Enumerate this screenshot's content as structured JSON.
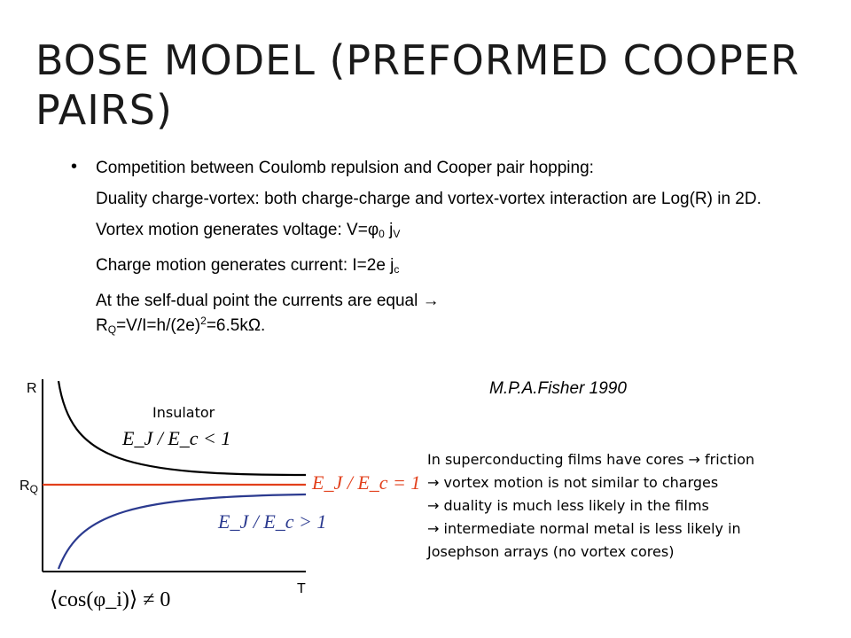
{
  "slide": {
    "title": "BOSE MODEL (PREFORMED COOPER PAIRS)",
    "bullets": {
      "main": "Competition between Coulomb repulsion and Cooper pair hopping:",
      "duality": "Duality charge-vortex: both charge-charge and vortex-vortex interaction are Log(R) in 2D.",
      "vortex_pre": "Vortex motion generates voltage: V=φ",
      "vortex_sub1": "0",
      "vortex_mid": " j",
      "vortex_sub2": "V",
      "charge_pre": "Charge motion generates current: I=2e j",
      "charge_sub": "c",
      "selfdual_line1": "At the self-dual point the currents are equal →",
      "selfdual_R": "R",
      "selfdual_Rsub": "Q",
      "selfdual_mid": "=V/I=h/(2e)",
      "selfdual_sup": "2",
      "selfdual_end": "=6.5kΩ."
    },
    "citation": "M.P.A.Fisher 1990",
    "diagram": {
      "y_axis_label": "R",
      "rq_label": "R",
      "rq_sub": "Q",
      "x_axis_label": "T",
      "insulator_label": "Insulator",
      "eq_upper": "E_J / E_c < 1",
      "eq_middle": "E_J / E_c = 1",
      "eq_lower": "E_J / E_c > 1",
      "eq_bottom": "⟨cos(φ_i)⟩ ≠ 0",
      "colors": {
        "upper": "#000000",
        "middle": "#e2401c",
        "lower": "#2b3a8f"
      }
    },
    "note": {
      "line1": "In superconducting films have cores → friction",
      "line2": "→ vortex motion is not similar to charges",
      "line3": "→ duality is much less likely in the films",
      "line4": "→ intermediate normal metal is less likely in",
      "line5": "Josephson arrays (no vortex cores)"
    }
  }
}
